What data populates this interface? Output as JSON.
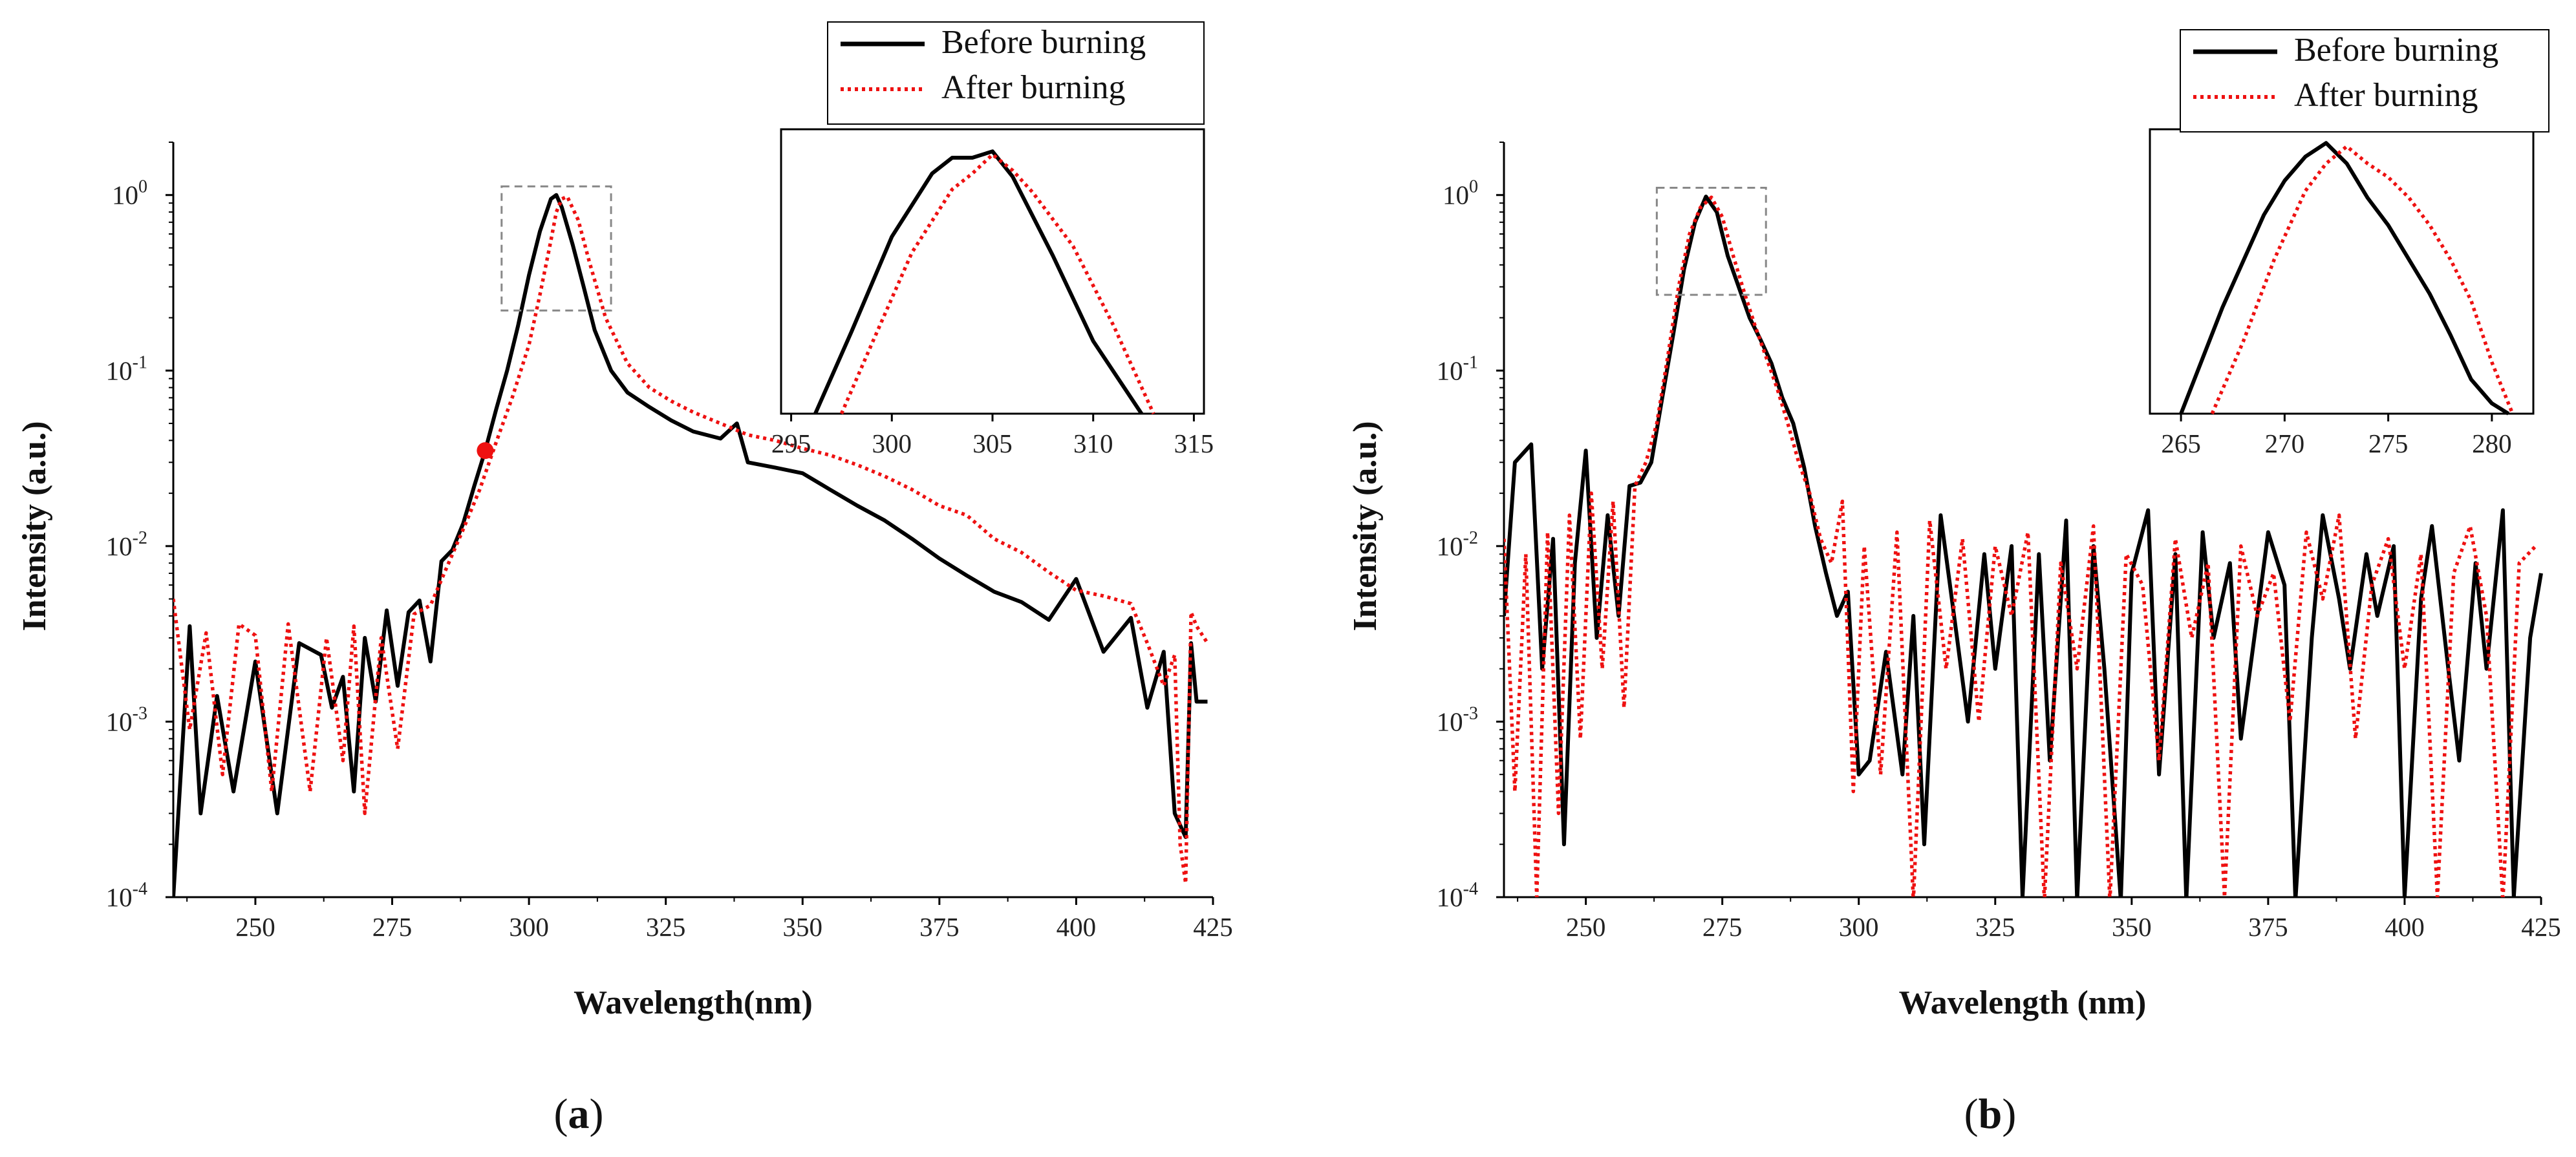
{
  "figure": {
    "panels": [
      {
        "label_open": "(",
        "label_letter": "a",
        "label_close": ")"
      },
      {
        "label_open": "(",
        "label_letter": "b",
        "label_close": ")"
      }
    ]
  },
  "colors": {
    "before": "#000000",
    "after": "#ee1111",
    "marker": "#ee1111",
    "zoom_box": "#888888"
  },
  "chart_data": [
    {
      "type": "line",
      "panel": "a",
      "xlabel": "Wavelength(nm)",
      "ylabel": "Intensity (a.u.)",
      "yscale": "log",
      "xlim": [
        235,
        425
      ],
      "ylim": [
        0.0001,
        2
      ],
      "xticks": [
        250,
        275,
        300,
        325,
        350,
        375,
        400,
        425
      ],
      "xtick_labels": [
        "250",
        "275",
        "300",
        "325",
        "350",
        "375",
        "400",
        "425"
      ],
      "yticks": [
        0.0001,
        0.001,
        0.01,
        0.1,
        1
      ],
      "ytick_exponents": [
        "-4",
        "-3",
        "-2",
        "-1",
        "0"
      ],
      "ytick_base": "10",
      "legend": [
        "Before burning",
        "After burning"
      ],
      "legend_position": "top-right",
      "marker_point": {
        "x": 292,
        "y": 0.035
      },
      "zoom_box": {
        "x": [
          295,
          315
        ],
        "y": [
          0.22,
          1.12
        ]
      },
      "series": [
        {
          "name": "Before burning",
          "style": "solid",
          "x": [
            235,
            238,
            240,
            243,
            246,
            250,
            254,
            258,
            262,
            264,
            266,
            268,
            270,
            272,
            274,
            276,
            278,
            280,
            282,
            284,
            286,
            288,
            290,
            292,
            294,
            296,
            298,
            300,
            302,
            304,
            305,
            306,
            308,
            310,
            312,
            315,
            318,
            322,
            326,
            330,
            335,
            338,
            340,
            345,
            350,
            355,
            360,
            365,
            370,
            375,
            380,
            385,
            390,
            395,
            400,
            405,
            410,
            413,
            416,
            418,
            420,
            421,
            422,
            424
          ],
          "y": [
            0.0001,
            0.0035,
            0.0003,
            0.0014,
            0.0004,
            0.0022,
            0.0003,
            0.0028,
            0.0024,
            0.0012,
            0.0018,
            0.0004,
            0.003,
            0.0013,
            0.0043,
            0.0016,
            0.0042,
            0.0049,
            0.0022,
            0.0082,
            0.0095,
            0.0135,
            0.022,
            0.035,
            0.06,
            0.1,
            0.18,
            0.35,
            0.62,
            0.95,
            1.0,
            0.85,
            0.52,
            0.3,
            0.17,
            0.1,
            0.075,
            0.062,
            0.052,
            0.045,
            0.041,
            0.05,
            0.03,
            0.028,
            0.026,
            0.021,
            0.017,
            0.014,
            0.011,
            0.0085,
            0.0068,
            0.0055,
            0.0048,
            0.0038,
            0.0065,
            0.0025,
            0.0039,
            0.0012,
            0.0025,
            0.0003,
            0.00022,
            0.0028,
            0.0013,
            0.0013
          ]
        },
        {
          "name": "After burning",
          "style": "dotted",
          "x": [
            235,
            238,
            241,
            244,
            247,
            250,
            253,
            256,
            260,
            263,
            266,
            268,
            270,
            273,
            276,
            279,
            282,
            285,
            288,
            291,
            294,
            297,
            300,
            302,
            304,
            305,
            306,
            307,
            309,
            311,
            314,
            318,
            322,
            326,
            330,
            335,
            340,
            345,
            350,
            355,
            360,
            365,
            370,
            375,
            380,
            385,
            390,
            395,
            400,
            405,
            410,
            413,
            416,
            418,
            419,
            420,
            421,
            422,
            424
          ],
          "y": [
            0.005,
            0.0009,
            0.0032,
            0.0005,
            0.0036,
            0.0031,
            0.0004,
            0.0036,
            0.0004,
            0.003,
            0.0006,
            0.0035,
            0.0003,
            0.003,
            0.0007,
            0.0041,
            0.0046,
            0.0076,
            0.0125,
            0.021,
            0.039,
            0.071,
            0.14,
            0.27,
            0.55,
            0.8,
            0.95,
            0.98,
            0.72,
            0.42,
            0.2,
            0.11,
            0.08,
            0.067,
            0.058,
            0.05,
            0.043,
            0.04,
            0.036,
            0.033,
            0.029,
            0.025,
            0.021,
            0.017,
            0.015,
            0.011,
            0.0092,
            0.0071,
            0.0056,
            0.0052,
            0.0047,
            0.0028,
            0.0016,
            0.0024,
            0.0002,
            0.00012,
            0.0042,
            0.0035,
            0.0028
          ]
        }
      ],
      "inset": {
        "xlim": [
          294.5,
          315.5
        ],
        "ylim": [
          0.22,
          1.12
        ],
        "xticks": [
          295,
          300,
          305,
          310,
          315
        ],
        "xtick_labels": [
          "295",
          "300",
          "305",
          "310",
          "315"
        ],
        "series": [
          {
            "name": "Before burning",
            "style": "solid",
            "x": [
              296.2,
              298,
              300,
              302,
              303,
              304,
              305,
              306,
              308,
              310,
              312.4
            ],
            "y": [
              0.22,
              0.48,
              0.78,
              0.98,
              1.03,
              1.03,
              1.05,
              0.97,
              0.72,
              0.45,
              0.22
            ]
          },
          {
            "name": "After burning",
            "style": "dotted",
            "x": [
              297.5,
              299,
              301,
              303,
              304,
              305,
              306,
              307,
              309,
              311,
              313
            ],
            "y": [
              0.22,
              0.44,
              0.73,
              0.93,
              0.98,
              1.04,
              0.99,
              0.92,
              0.75,
              0.5,
              0.22
            ]
          }
        ]
      }
    },
    {
      "type": "line",
      "panel": "b",
      "xlabel": "Wavelength (nm)",
      "ylabel": "Intensity (a.u.)",
      "yscale": "log",
      "xlim": [
        235,
        425
      ],
      "ylim": [
        0.0001,
        2
      ],
      "xticks": [
        250,
        275,
        300,
        325,
        350,
        375,
        400,
        425
      ],
      "xtick_labels": [
        "250",
        "275",
        "300",
        "325",
        "350",
        "375",
        "400",
        "425"
      ],
      "yticks": [
        0.0001,
        0.001,
        0.01,
        0.1,
        1
      ],
      "ytick_exponents": [
        "-4",
        "-3",
        "-2",
        "-1",
        "0"
      ],
      "ytick_base": "10",
      "legend": [
        "Before burning",
        "After burning"
      ],
      "legend_position": "top-right",
      "zoom_box": {
        "x": [
          263,
          283
        ],
        "y": [
          0.27,
          1.1
        ]
      },
      "series": [
        {
          "name": "Before burning",
          "style": "solid",
          "x": [
            235,
            237,
            240,
            242,
            244,
            246,
            248,
            250,
            252,
            254,
            256,
            258,
            260,
            262,
            264,
            266,
            268,
            270,
            272,
            274,
            276,
            278,
            280,
            282,
            284,
            286,
            288,
            290,
            292,
            294,
            296,
            298,
            300,
            302,
            305,
            308,
            310,
            312,
            315,
            318,
            320,
            323,
            325,
            328,
            330,
            333,
            335,
            338,
            340,
            343,
            345,
            348,
            350,
            353,
            355,
            358,
            360,
            363,
            365,
            368,
            370,
            373,
            375,
            378,
            380,
            383,
            385,
            388,
            390,
            393,
            395,
            398,
            400,
            403,
            405,
            408,
            410,
            413,
            415,
            418,
            420,
            423,
            425
          ],
          "y": [
            0.004,
            0.03,
            0.038,
            0.002,
            0.011,
            0.0002,
            0.008,
            0.035,
            0.003,
            0.015,
            0.004,
            0.022,
            0.023,
            0.03,
            0.07,
            0.16,
            0.38,
            0.7,
            0.98,
            0.8,
            0.45,
            0.3,
            0.2,
            0.15,
            0.11,
            0.07,
            0.05,
            0.028,
            0.013,
            0.007,
            0.004,
            0.0055,
            0.0005,
            0.0006,
            0.0025,
            0.0005,
            0.004,
            0.0002,
            0.015,
            0.003,
            0.001,
            0.009,
            0.002,
            0.01,
            0.0001,
            0.009,
            0.0006,
            0.014,
            8e-05,
            0.01,
            0.002,
            9e-05,
            0.007,
            0.016,
            0.0005,
            0.009,
            9e-05,
            0.012,
            0.003,
            0.008,
            0.0008,
            0.004,
            0.012,
            0.006,
            8e-05,
            0.003,
            0.015,
            0.005,
            0.002,
            0.009,
            0.004,
            0.01,
            0.0001,
            0.005,
            0.013,
            0.002,
            0.0006,
            0.008,
            0.002,
            0.016,
            0.0001,
            0.003,
            0.007
          ]
        },
        {
          "name": "After burning",
          "style": "dotted",
          "x": [
            235,
            237,
            239,
            241,
            243,
            245,
            247,
            249,
            251,
            253,
            255,
            257,
            259,
            261,
            263,
            265,
            267,
            269,
            271,
            273,
            275,
            277,
            279,
            281,
            283,
            285,
            287,
            289,
            291,
            293,
            295,
            297,
            299,
            301,
            304,
            307,
            310,
            313,
            316,
            319,
            322,
            325,
            328,
            331,
            334,
            337,
            340,
            343,
            346,
            349,
            352,
            355,
            358,
            361,
            364,
            367,
            370,
            373,
            376,
            379,
            382,
            385,
            388,
            391,
            394,
            397,
            400,
            403,
            406,
            409,
            412,
            415,
            418,
            421,
            424
          ],
          "y": [
            0.011,
            0.0004,
            0.009,
            0.0001,
            0.012,
            0.0003,
            0.015,
            0.0008,
            0.02,
            0.002,
            0.018,
            0.0012,
            0.022,
            0.03,
            0.05,
            0.12,
            0.3,
            0.6,
            0.85,
            0.97,
            0.75,
            0.45,
            0.28,
            0.18,
            0.12,
            0.08,
            0.05,
            0.03,
            0.02,
            0.011,
            0.008,
            0.018,
            0.0004,
            0.01,
            0.0005,
            0.012,
            2e-05,
            0.014,
            0.002,
            0.011,
            0.001,
            0.01,
            0.004,
            0.012,
            9e-05,
            0.008,
            0.002,
            0.013,
            5e-05,
            0.009,
            0.006,
            0.0006,
            0.011,
            0.003,
            0.008,
            0.0001,
            0.01,
            0.004,
            0.007,
            0.001,
            0.012,
            0.005,
            0.015,
            0.0008,
            0.006,
            0.011,
            0.002,
            0.009,
            0.0001,
            0.007,
            0.013,
            0.004,
            9e-05,
            0.008,
            0.01
          ]
        }
      ],
      "inset": {
        "xlim": [
          263.5,
          282
        ],
        "ylim": [
          0.27,
          1.1
        ],
        "xticks": [
          265,
          270,
          275,
          280
        ],
        "xtick_labels": [
          "265",
          "270",
          "275",
          "280"
        ],
        "series": [
          {
            "name": "Before burning",
            "style": "solid",
            "x": [
              265,
              267,
              269,
              270,
              271,
              272,
              273,
              274,
              275,
              277,
              278,
              279,
              280,
              280.8
            ],
            "y": [
              0.27,
              0.58,
              0.85,
              0.95,
              1.02,
              1.06,
              1.0,
              0.9,
              0.82,
              0.62,
              0.5,
              0.37,
              0.3,
              0.27
            ]
          },
          {
            "name": "After burning",
            "style": "dotted",
            "x": [
              266.5,
              268,
              269.5,
              271,
              272,
              273,
              274,
              275,
              276,
              277,
              278,
              279,
              280,
              281
            ],
            "y": [
              0.27,
              0.48,
              0.72,
              0.92,
              1.0,
              1.05,
              1.0,
              0.96,
              0.9,
              0.82,
              0.72,
              0.6,
              0.42,
              0.27
            ]
          }
        ]
      }
    }
  ]
}
